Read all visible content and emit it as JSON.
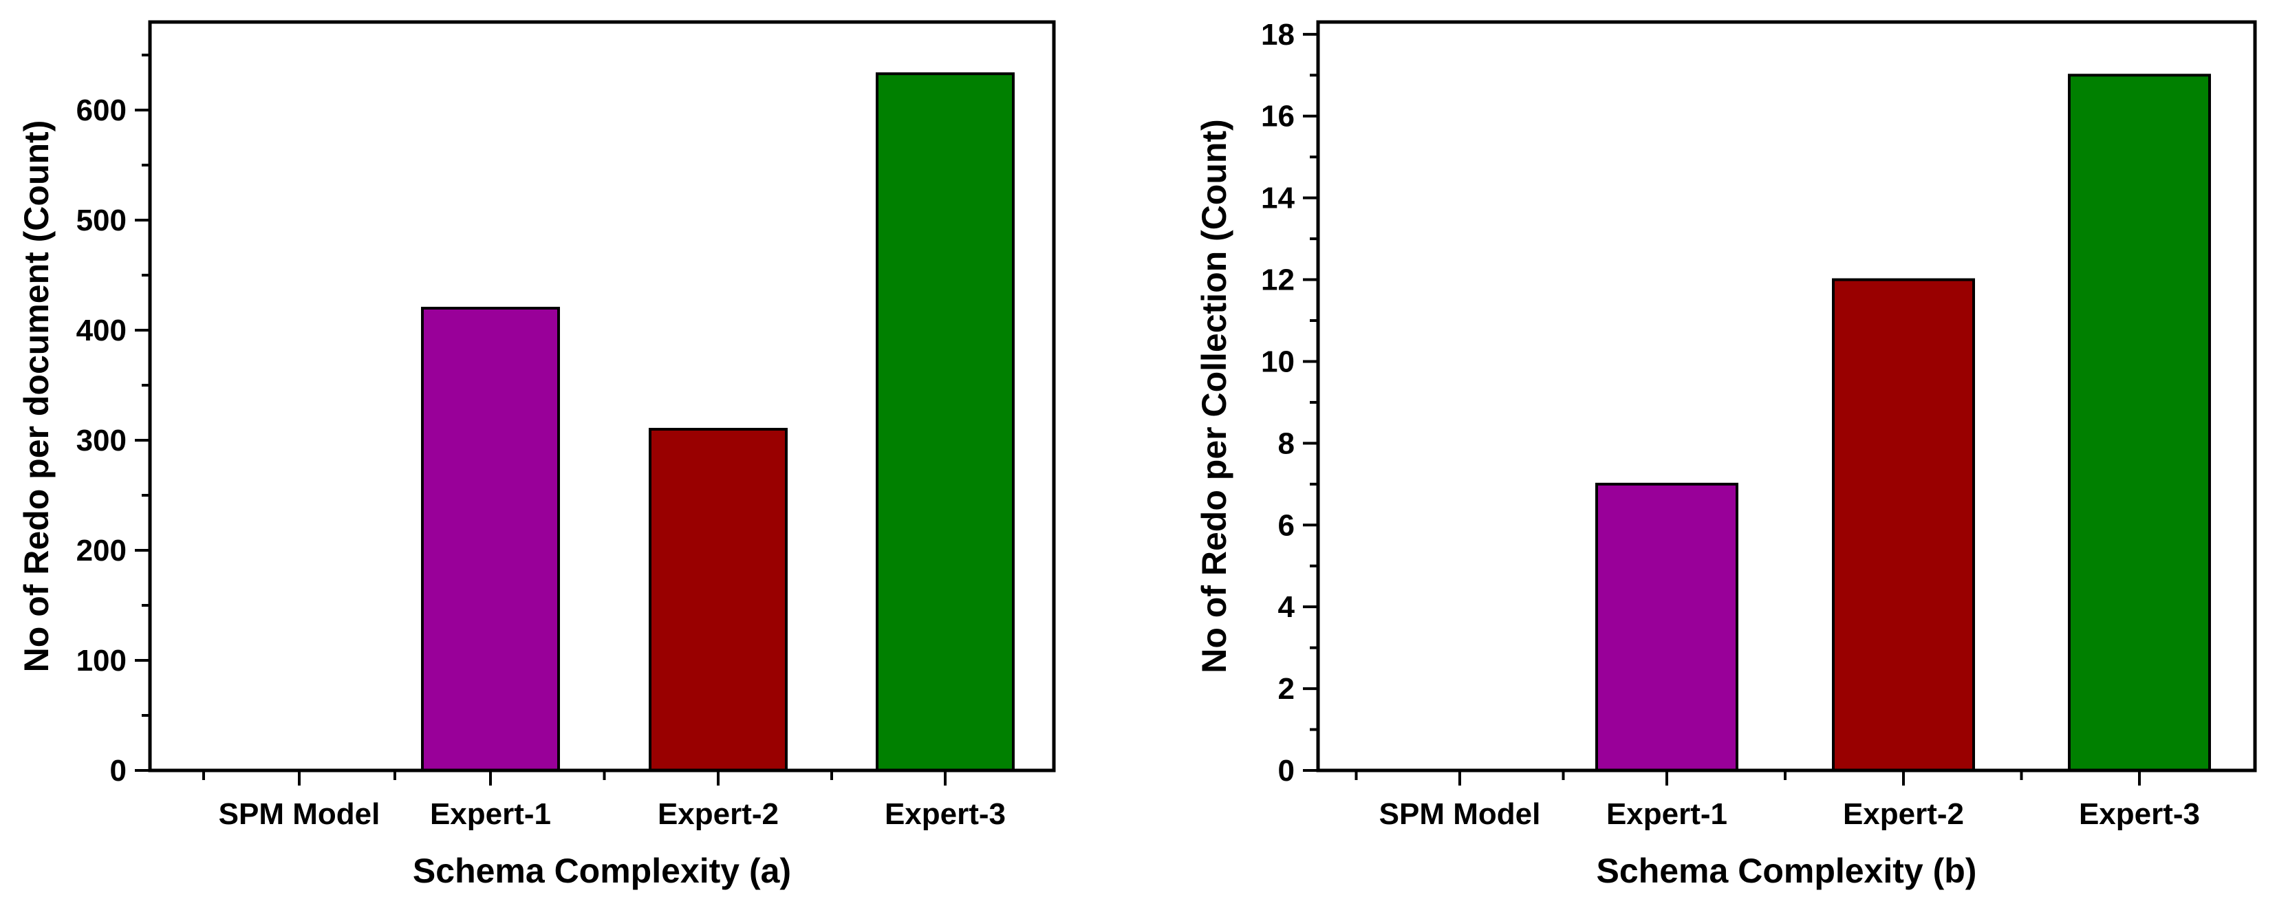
{
  "chart_data": [
    {
      "type": "bar",
      "categories": [
        "SPM Model",
        "Expert-1",
        "Expert-2",
        "Expert-3"
      ],
      "values": [
        0,
        420,
        310,
        633
      ],
      "colors": [
        "#000000",
        "#990099",
        "#990000",
        "#008000"
      ],
      "title": "",
      "xlabel": "Schema Complexity (a)",
      "ylabel": "No of Redo per document (Count)",
      "ylim": [
        0,
        680
      ],
      "yticks": [
        0,
        100,
        200,
        300,
        400,
        500,
        600
      ],
      "minor_tick_step": 50,
      "grid": false
    },
    {
      "type": "bar",
      "categories": [
        "SPM Model",
        "Expert-1",
        "Expert-2",
        "Expert-3"
      ],
      "values": [
        0,
        7,
        12,
        17
      ],
      "colors": [
        "#000000",
        "#990099",
        "#990000",
        "#008000"
      ],
      "title": "",
      "xlabel": "Schema Complexity (b)",
      "ylabel": "No of Redo per Collection (Count)",
      "ylim": [
        0,
        18.3
      ],
      "yticks": [
        0,
        2,
        4,
        6,
        8,
        10,
        12,
        14,
        16,
        18
      ],
      "minor_tick_step": 1,
      "grid": false
    }
  ]
}
